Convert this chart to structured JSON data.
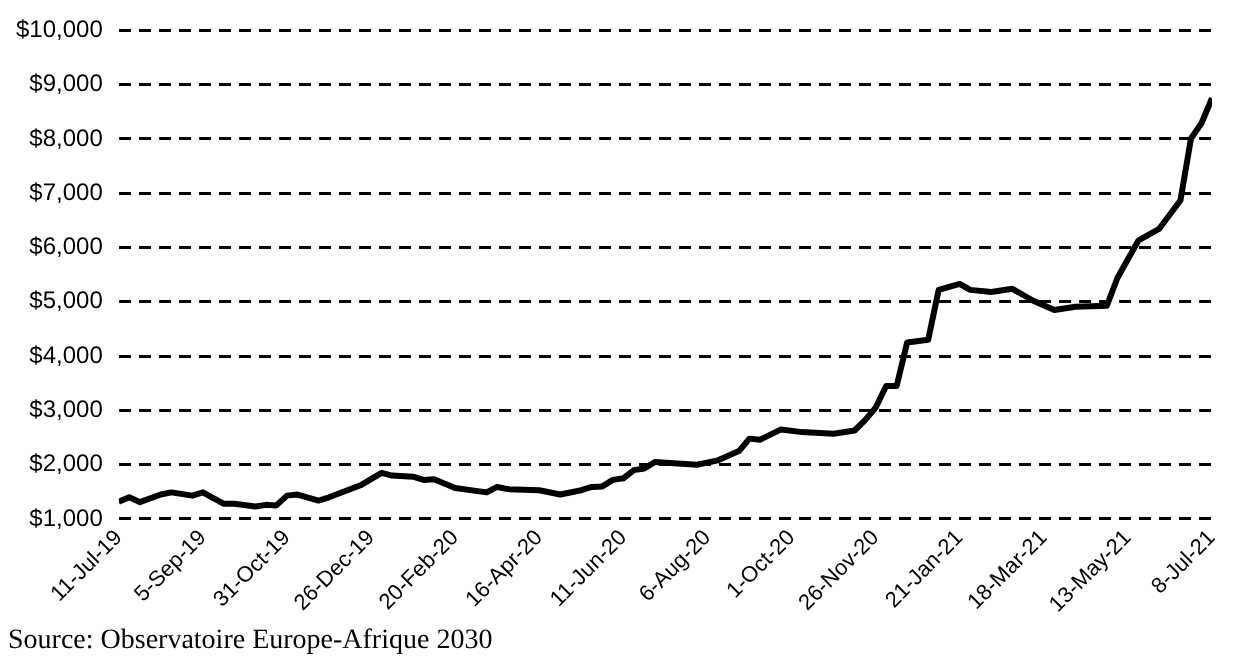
{
  "chart_data": {
    "type": "line",
    "x": [
      "2019-07-11",
      "2019-07-18",
      "2019-07-25",
      "2019-08-08",
      "2019-08-15",
      "2019-08-29",
      "2019-09-05",
      "2019-09-19",
      "2019-09-26",
      "2019-10-10",
      "2019-10-17",
      "2019-10-24",
      "2019-10-31",
      "2019-11-07",
      "2019-11-21",
      "2019-11-28",
      "2019-12-19",
      "2020-01-02",
      "2020-01-09",
      "2020-01-23",
      "2020-01-30",
      "2020-02-06",
      "2020-02-20",
      "2020-03-12",
      "2020-03-19",
      "2020-03-26",
      "2020-04-16",
      "2020-04-30",
      "2020-05-14",
      "2020-05-21",
      "2020-05-28",
      "2020-06-04",
      "2020-06-11",
      "2020-06-18",
      "2020-06-25",
      "2020-07-02",
      "2020-07-30",
      "2020-08-13",
      "2020-08-27",
      "2020-09-03",
      "2020-09-10",
      "2020-09-24",
      "2020-10-08",
      "2020-10-29",
      "2020-11-12",
      "2020-11-19",
      "2020-11-26",
      "2020-12-03",
      "2020-12-10",
      "2020-12-17",
      "2020-12-31",
      "2021-01-07",
      "2021-01-21",
      "2021-01-28",
      "2021-02-11",
      "2021-02-25",
      "2021-03-11",
      "2021-03-25",
      "2021-04-08",
      "2021-04-29",
      "2021-05-06",
      "2021-05-20",
      "2021-06-03",
      "2021-06-17",
      "2021-06-24",
      "2021-07-01",
      "2021-07-08"
    ],
    "series": [
      {
        "color": "#000000",
        "values": [
          1320,
          1400,
          1310,
          1450,
          1490,
          1430,
          1490,
          1280,
          1280,
          1230,
          1260,
          1250,
          1430,
          1450,
          1340,
          1400,
          1620,
          1850,
          1800,
          1780,
          1720,
          1730,
          1570,
          1490,
          1590,
          1550,
          1530,
          1450,
          1530,
          1590,
          1600,
          1720,
          1750,
          1900,
          1930,
          2050,
          2000,
          2080,
          2250,
          2480,
          2460,
          2650,
          2600,
          2570,
          2630,
          2820,
          3050,
          3450,
          3450,
          4250,
          4300,
          5220,
          5330,
          5220,
          5180,
          5240,
          5020,
          4850,
          4910,
          4930,
          5440,
          6130,
          6350,
          6870,
          8010,
          8290,
          8750
        ]
      }
    ],
    "xlim": [
      "2019-07-11",
      "2021-07-08"
    ],
    "xticks": [
      {
        "value": "2019-07-11",
        "label": "11-Jul-19"
      },
      {
        "value": "2019-09-05",
        "label": "5-Sep-19"
      },
      {
        "value": "2019-10-31",
        "label": "31-Oct-19"
      },
      {
        "value": "2019-12-26",
        "label": "26-Dec-19"
      },
      {
        "value": "2020-02-20",
        "label": "20-Feb-20"
      },
      {
        "value": "2020-04-16",
        "label": "16-Apr-20"
      },
      {
        "value": "2020-06-11",
        "label": "11-Jun-20"
      },
      {
        "value": "2020-08-06",
        "label": "6-Aug-20"
      },
      {
        "value": "2020-10-01",
        "label": "1-Oct-20"
      },
      {
        "value": "2020-11-26",
        "label": "26-Nov-20"
      },
      {
        "value": "2021-01-21",
        "label": "21-Jan-21"
      },
      {
        "value": "2021-03-18",
        "label": "18-Mar-21"
      },
      {
        "value": "2021-05-13",
        "label": "13-May-21"
      },
      {
        "value": "2021-07-08",
        "label": "8-Jul-21"
      }
    ],
    "ylim": [
      1000,
      10000
    ],
    "yticks": [
      {
        "value": 1000,
        "label": "$1,000"
      },
      {
        "value": 2000,
        "label": "$2,000"
      },
      {
        "value": 3000,
        "label": "$3,000"
      },
      {
        "value": 4000,
        "label": "$4,000"
      },
      {
        "value": 5000,
        "label": "$5,000"
      },
      {
        "value": 6000,
        "label": "$6,000"
      },
      {
        "value": 7000,
        "label": "$7,000"
      },
      {
        "value": 8000,
        "label": "$8,000"
      },
      {
        "value": 9000,
        "label": "$9,000"
      },
      {
        "value": 10000,
        "label": "$10,000"
      }
    ],
    "grid": "y",
    "legend": false,
    "marker": "none",
    "line_style": "solid",
    "annotations": [
      "Source: Observatoire Europe-Afrique 2030"
    ]
  }
}
